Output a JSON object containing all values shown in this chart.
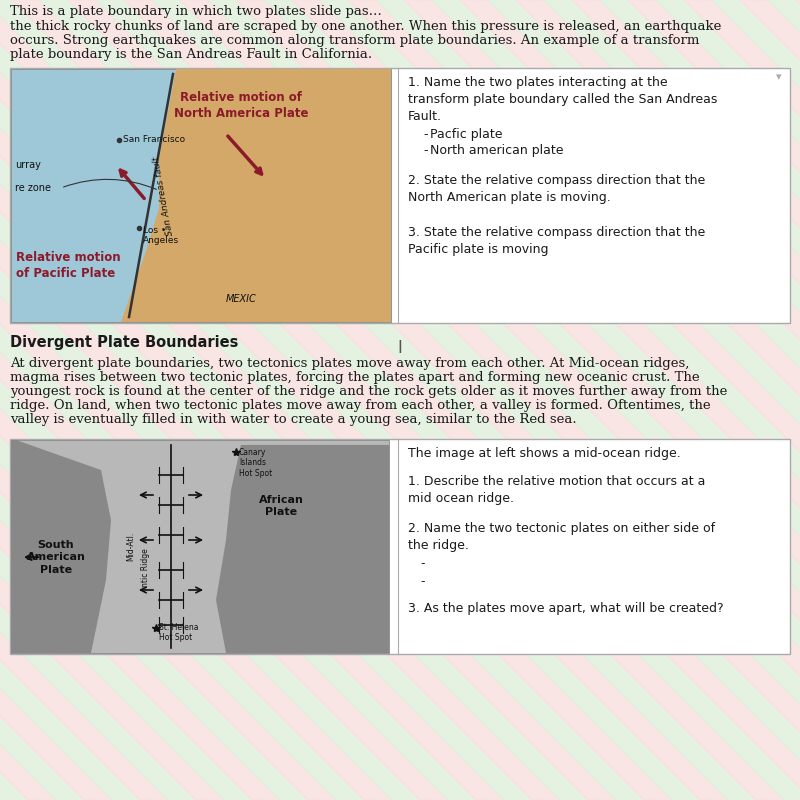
{
  "top_text_line1": "the thick rocky chunks of land are scraped by one another. When this pressure is released, an earthquake",
  "top_text_line2": "occurs. Strong earthquakes are common along transform plate boundaries. An example of a transform",
  "top_text_line3": "plate boundary is the San Andreas Fault in California.",
  "top_text_partial": "This is a plate boundary in which two plates slide pas",
  "section1_q1": "1. Name the two plates interacting at the\ntransform plate boundary called the San Andreas\nFault.",
  "section1_bullet1": "Pacfic plate",
  "section1_bullet2": "North american plate",
  "section1_q2": "2. State the relative compass direction that the\nNorth American plate is moving.",
  "section1_q3": "3. State the relative compass direction that the\nPacific plate is moving",
  "divider_label": "Divergent Plate Boundaries",
  "cursor": "I",
  "body2_line1": "At divergent plate boundaries, two tectonics plates move away from each other. At Mid-ocean ridges,",
  "body2_line2": "magma rises between two tectonic plates, forcing the plates apart and forming new oceanic crust. The",
  "body2_line3": "youngest rock is found at the center of the ridge and the rock gets older as it moves further away from the",
  "body2_line4": "ridge. On land, when two tectonic plates move away from each other, a valley is formed. Oftentimes, the",
  "body2_line5": "valley is eventually filled in with water to create a young sea, similar to the Red sea.",
  "section2_intro": "The image at left shows a mid-ocean ridge.",
  "section2_q1": "1. Describe the relative motion that occurs at a\nmid ocean ridge.",
  "section2_q2": "2. Name the two tectonic plates on either side of\nthe ridge.",
  "section2_bullet1": "-",
  "section2_bullet2": "-",
  "section2_q3": "3. As the plates move apart, what will be created?",
  "stripe_green": "#c8e6c4",
  "stripe_pink": "#f5c8c8",
  "ocean_color": "#9ec8d8",
  "land_color": "#d4a868",
  "dark_red": "#8b1a2a",
  "fault_color": "#222222",
  "map2_bg": "#b8b8b8",
  "map2_land": "#888888",
  "font_color": "#1a1a1a",
  "box_border": "#aaaaaa",
  "white": "#ffffff"
}
